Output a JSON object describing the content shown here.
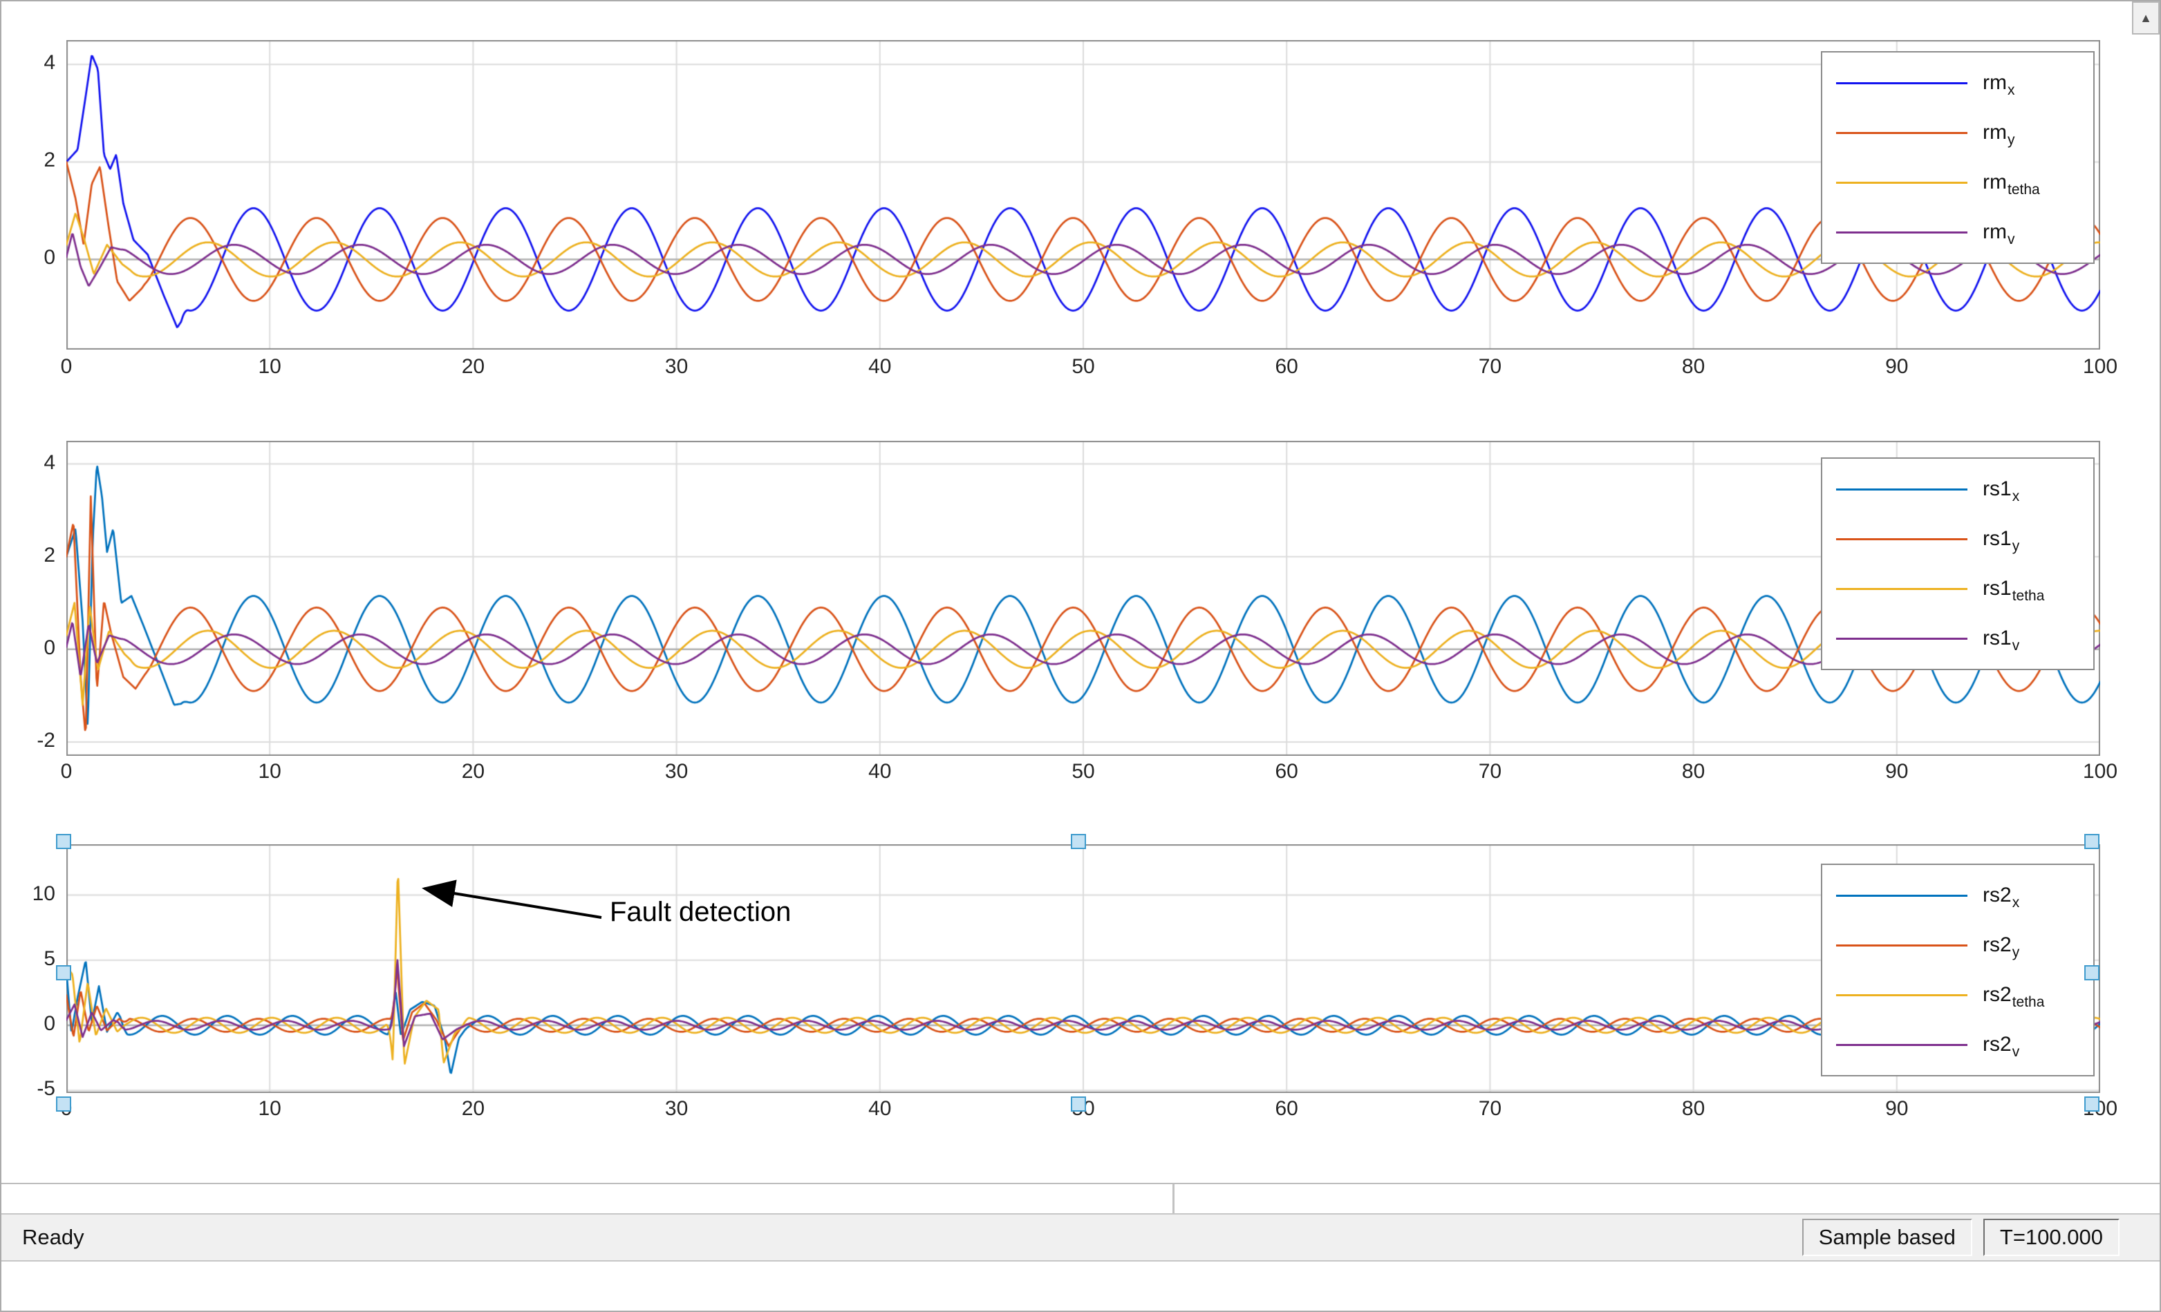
{
  "window": {
    "scroll_up_icon": "▲"
  },
  "status_bar": {
    "ready": "Ready",
    "sample_based": "Sample based",
    "time": "T=100.000"
  },
  "chart_data": [
    {
      "type": "line",
      "title": "",
      "xlabel": "",
      "ylabel": "",
      "xlim": [
        0,
        100
      ],
      "xticks": [
        0,
        10,
        20,
        30,
        40,
        50,
        60,
        70,
        80,
        90,
        100
      ],
      "ylim": [
        -1.85,
        4.5
      ],
      "yticks": [
        4,
        2,
        0
      ],
      "grid": true,
      "legend_position": "top-right",
      "series": [
        {
          "label_base": "rm",
          "label_sub": "x",
          "color": "#1213ef",
          "amp": 1.05,
          "period": 6.2,
          "phase": -1.47,
          "segments": [
            [
              [
                0,
                2.0
              ],
              [
                0.55,
                2.25
              ],
              [
                0.95,
                3.35
              ],
              [
                1.25,
                4.2
              ],
              [
                1.55,
                3.9
              ],
              [
                1.85,
                2.15
              ],
              [
                2.15,
                1.85
              ],
              [
                2.45,
                2.15
              ],
              [
                2.8,
                1.15
              ],
              [
                3.3,
                0.4
              ],
              [
                4.0,
                0.1
              ],
              [
                4.8,
                -0.75
              ],
              [
                5.45,
                -1.4
              ],
              [
                6.0,
                -1.05
              ]
            ]
          ]
        },
        {
          "label_base": "rm",
          "label_sub": "y",
          "color": "#d95319",
          "amp": 0.85,
          "period": 6.2,
          "phase": 1.67,
          "segments": [
            [
              [
                0,
                2.0
              ],
              [
                0.45,
                1.25
              ],
              [
                0.85,
                0.3
              ],
              [
                1.25,
                1.55
              ],
              [
                1.65,
                1.9
              ],
              [
                2.05,
                0.75
              ],
              [
                2.5,
                -0.45
              ],
              [
                3.1,
                -0.85
              ],
              [
                3.7,
                -0.6
              ],
              [
                4.2,
                -0.3
              ]
            ]
          ]
        },
        {
          "label_base": "rm",
          "label_sub": "tetha",
          "color": "#edb120",
          "amp": 0.35,
          "period": 6.2,
          "phase": 0.8,
          "segments": [
            [
              [
                0,
                0.3
              ],
              [
                0.45,
                0.95
              ],
              [
                0.85,
                0.45
              ],
              [
                1.35,
                -0.3
              ],
              [
                2.0,
                0.3
              ],
              [
                2.75,
                -0.1
              ],
              [
                3.5,
                -0.33
              ]
            ]
          ]
        },
        {
          "label_base": "rm",
          "label_sub": "v",
          "color": "#7e2f8e",
          "amp": 0.3,
          "period": 6.2,
          "phase": -0.5,
          "segments": [
            [
              [
                0,
                0.05
              ],
              [
                0.3,
                0.55
              ],
              [
                0.7,
                -0.15
              ],
              [
                1.1,
                -0.55
              ],
              [
                1.6,
                -0.2
              ],
              [
                2.2,
                0.25
              ],
              [
                3.0,
                0.17
              ]
            ]
          ]
        }
      ]
    },
    {
      "type": "line",
      "title": "",
      "xlabel": "",
      "ylabel": "",
      "xlim": [
        0,
        100
      ],
      "xticks": [
        0,
        10,
        20,
        30,
        40,
        50,
        60,
        70,
        80,
        90,
        100
      ],
      "ylim": [
        -2.3,
        4.5
      ],
      "yticks": [
        4,
        2,
        0,
        -2
      ],
      "grid": true,
      "legend_position": "top-right",
      "series": [
        {
          "label_base": "rs1",
          "label_sub": "x",
          "color": "#0072bd",
          "amp": 1.15,
          "period": 6.2,
          "phase": -1.47,
          "segments": [
            [
              [
                0,
                2.0
              ],
              [
                0.45,
                2.6
              ],
              [
                0.8,
                0.6
              ],
              [
                1.05,
                -1.7
              ],
              [
                1.3,
                2.4
              ],
              [
                1.5,
                4.0
              ],
              [
                1.75,
                3.3
              ],
              [
                2.0,
                2.1
              ],
              [
                2.3,
                2.6
              ],
              [
                2.7,
                1.0
              ],
              [
                3.2,
                1.15
              ],
              [
                3.8,
                0.5
              ],
              [
                4.6,
                -0.4
              ],
              [
                5.3,
                -1.2
              ],
              [
                6.0,
                -1.15
              ]
            ]
          ]
        },
        {
          "label_base": "rs1",
          "label_sub": "y",
          "color": "#d95319",
          "amp": 0.9,
          "period": 6.2,
          "phase": 1.67,
          "segments": [
            [
              [
                0,
                2.0
              ],
              [
                0.35,
                2.75
              ],
              [
                0.7,
                -0.6
              ],
              [
                0.95,
                -1.9
              ],
              [
                1.2,
                3.3
              ],
              [
                1.5,
                -0.9
              ],
              [
                1.85,
                1.05
              ],
              [
                2.2,
                0.35
              ],
              [
                2.8,
                -0.6
              ],
              [
                3.4,
                -0.85
              ],
              [
                4.2,
                -0.32
              ]
            ]
          ]
        },
        {
          "label_base": "rs1",
          "label_sub": "tetha",
          "color": "#edb120",
          "amp": 0.4,
          "period": 6.2,
          "phase": 0.8,
          "segments": [
            [
              [
                0,
                0.3
              ],
              [
                0.4,
                1.0
              ],
              [
                0.8,
                -1.2
              ],
              [
                1.15,
                0.95
              ],
              [
                1.55,
                -0.45
              ],
              [
                2.1,
                0.4
              ],
              [
                2.85,
                -0.1
              ],
              [
                3.5,
                -0.37
              ]
            ]
          ]
        },
        {
          "label_base": "rs1",
          "label_sub": "v",
          "color": "#7e2f8e",
          "amp": 0.32,
          "period": 6.2,
          "phase": -0.5,
          "segments": [
            [
              [
                0,
                0.05
              ],
              [
                0.3,
                0.6
              ],
              [
                0.7,
                -0.6
              ],
              [
                1.1,
                0.55
              ],
              [
                1.5,
                -0.3
              ],
              [
                2.1,
                0.3
              ],
              [
                3.0,
                0.18
              ]
            ]
          ]
        }
      ]
    },
    {
      "type": "line",
      "title": "",
      "xlabel": "",
      "ylabel": "",
      "xlim": [
        0,
        100
      ],
      "xticks": [
        0,
        10,
        20,
        30,
        40,
        50,
        60,
        70,
        80,
        90,
        100
      ],
      "ylim": [
        -5.2,
        13.9
      ],
      "yticks": [
        10,
        5,
        0,
        -5
      ],
      "grid": true,
      "legend_position": "top-right",
      "annotation": {
        "text": "Fault detection",
        "target_x": 16.3
      },
      "series": [
        {
          "label_base": "rs2",
          "label_sub": "x",
          "color": "#0072bd",
          "amp": 0.72,
          "period": 3.2,
          "phase": -1.4,
          "segments": [
            [
              [
                0,
                4.2
              ],
              [
                0.25,
                -0.6
              ],
              [
                0.55,
                2.1
              ],
              [
                0.95,
                5.0
              ],
              [
                1.25,
                0.2
              ],
              [
                1.6,
                3.0
              ],
              [
                2.0,
                -0.5
              ],
              [
                2.5,
                1.0
              ],
              [
                3.0,
                -0.2
              ]
            ],
            [
              [
                15.8,
                0.2
              ],
              [
                16.2,
                2.5
              ],
              [
                16.45,
                -0.8
              ],
              [
                16.9,
                1.2
              ],
              [
                17.5,
                1.8
              ],
              [
                18.1,
                1.5
              ],
              [
                18.6,
                -1.0
              ],
              [
                18.9,
                -3.8
              ],
              [
                19.3,
                -1.0
              ],
              [
                19.9,
                0.3
              ]
            ]
          ]
        },
        {
          "label_base": "rs2",
          "label_sub": "y",
          "color": "#d95319",
          "amp": 0.5,
          "period": 3.2,
          "phase": 1.9,
          "segments": [
            [
              [
                0,
                2.3
              ],
              [
                0.35,
                -0.9
              ],
              [
                0.7,
                2.7
              ],
              [
                1.1,
                -0.5
              ],
              [
                1.5,
                1.5
              ],
              [
                2.0,
                -0.4
              ],
              [
                2.6,
                0.5
              ],
              [
                3.1,
                -0.1
              ]
            ],
            [
              [
                15.9,
                0.1
              ],
              [
                16.25,
                4.6
              ],
              [
                16.55,
                -1.2
              ],
              [
                17.0,
                1.0
              ],
              [
                17.6,
                1.7
              ],
              [
                18.2,
                0.4
              ],
              [
                18.8,
                -1.6
              ],
              [
                19.4,
                -0.2
              ],
              [
                19.9,
                0.2
              ]
            ]
          ]
        },
        {
          "label_base": "rs2",
          "label_sub": "tetha",
          "color": "#edb120",
          "amp": 0.58,
          "period": 3.2,
          "phase": 0.6,
          "segments": [
            [
              [
                0,
                4.5
              ],
              [
                0.3,
                3.9
              ],
              [
                0.65,
                -1.4
              ],
              [
                1.05,
                3.3
              ],
              [
                1.45,
                -0.8
              ],
              [
                1.95,
                1.3
              ],
              [
                2.5,
                -0.5
              ],
              [
                3.05,
                0.3
              ]
            ],
            [
              [
                15.7,
                0.3
              ],
              [
                16.05,
                -2.8
              ],
              [
                16.3,
                12.2
              ],
              [
                16.62,
                -3.1
              ],
              [
                17.1,
                0.6
              ],
              [
                17.7,
                1.9
              ],
              [
                18.3,
                1.2
              ],
              [
                18.55,
                -2.9
              ],
              [
                19.1,
                -0.6
              ],
              [
                19.8,
                0.3
              ]
            ]
          ]
        },
        {
          "label_base": "rs2",
          "label_sub": "v",
          "color": "#7e2f8e",
          "amp": 0.34,
          "period": 3.2,
          "phase": -0.8,
          "segments": [
            [
              [
                0,
                0.4
              ],
              [
                0.4,
                1.6
              ],
              [
                0.8,
                -0.9
              ],
              [
                1.25,
                1.0
              ],
              [
                1.7,
                -0.4
              ],
              [
                2.3,
                0.4
              ],
              [
                2.9,
                0.0
              ]
            ],
            [
              [
                15.9,
                0.0
              ],
              [
                16.28,
                5.0
              ],
              [
                16.6,
                -1.6
              ],
              [
                17.15,
                0.7
              ],
              [
                17.9,
                0.9
              ],
              [
                18.5,
                -1.1
              ],
              [
                19.2,
                -0.3
              ],
              [
                19.8,
                0.1
              ]
            ]
          ]
        }
      ]
    }
  ]
}
